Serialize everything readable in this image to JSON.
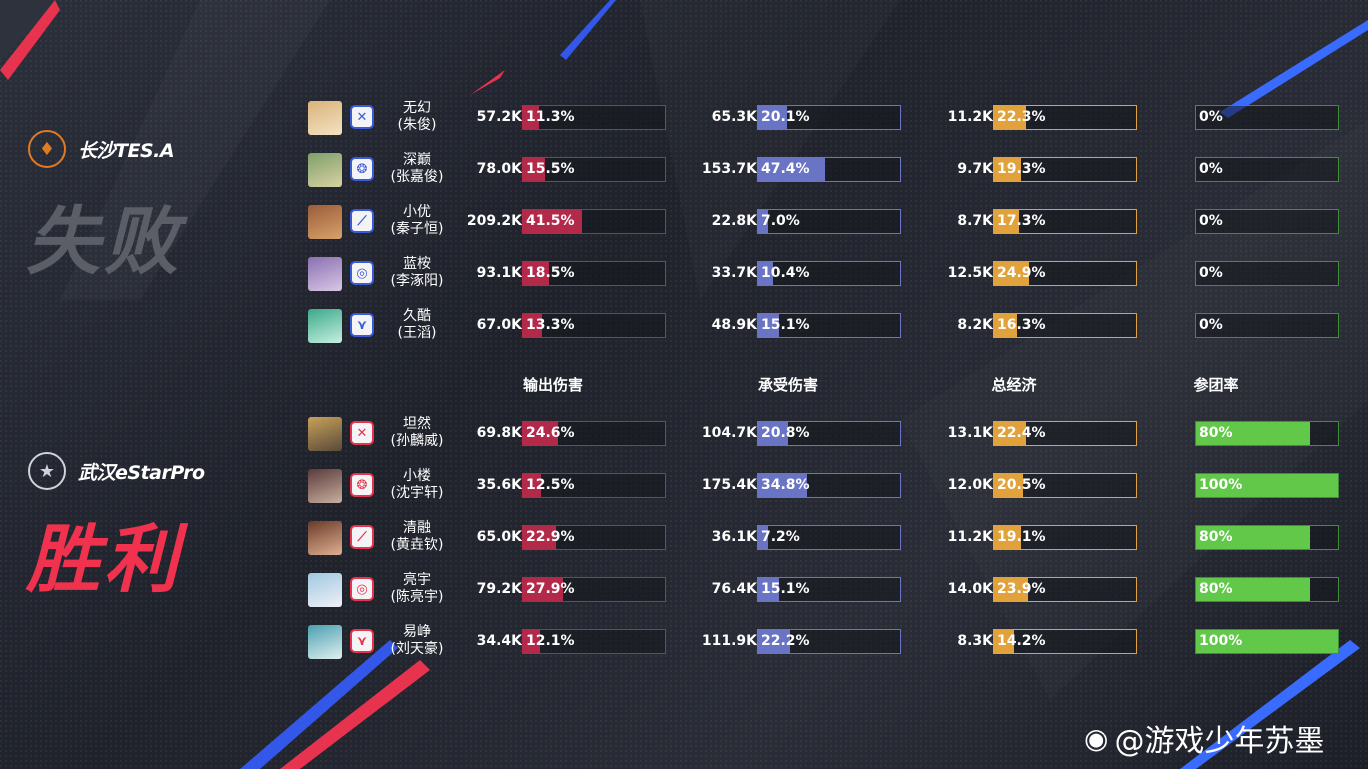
{
  "colors": {
    "damage": "#b3294a",
    "taken": "#6a74c4",
    "gold": "#e2a23b",
    "part": "#62c84a",
    "lose": "#6e717a",
    "win": "#f0324f"
  },
  "teams": {
    "top": {
      "name": "长沙TES.A",
      "result": "失败",
      "logo_icon": "tes-logo-icon"
    },
    "bottom": {
      "name": "武汉eStarPro",
      "result": "胜利",
      "logo_icon": "estar-logo-icon"
    }
  },
  "headers": {
    "damage": "输出伤害",
    "taken": "承受伤害",
    "gold": "总经济",
    "participation": "参团率"
  },
  "players_top": [
    {
      "name": "无幻",
      "real": "(朱俊)",
      "role": "jungle-role-icon",
      "dmg": "57.2K",
      "dmg_pct": "11.3%",
      "dmg_v": 0.113,
      "taken": "65.3K",
      "taken_pct": "20.1%",
      "taken_v": 0.201,
      "gold": "11.2K",
      "gold_pct": "22.3%",
      "gold_v": 0.223,
      "part": "0%",
      "part_v": 0
    },
    {
      "name": "深巅",
      "real": "(张嘉俊)",
      "role": "roam-role-icon",
      "dmg": "78.0K",
      "dmg_pct": "15.5%",
      "dmg_v": 0.155,
      "taken": "153.7K",
      "taken_pct": "47.4%",
      "taken_v": 0.474,
      "gold": "9.7K",
      "gold_pct": "19.3%",
      "gold_v": 0.193,
      "part": "0%",
      "part_v": 0
    },
    {
      "name": "小优",
      "real": "(秦子恒)",
      "role": "clash-lane-role-icon",
      "dmg": "209.2K",
      "dmg_pct": "41.5%",
      "dmg_v": 0.415,
      "taken": "22.8K",
      "taken_pct": "7.0%",
      "taken_v": 0.07,
      "gold": "8.7K",
      "gold_pct": "17.3%",
      "gold_v": 0.173,
      "part": "0%",
      "part_v": 0
    },
    {
      "name": "蓝桉",
      "real": "(李涿阳)",
      "role": "mid-role-icon",
      "dmg": "93.1K",
      "dmg_pct": "18.5%",
      "dmg_v": 0.185,
      "taken": "33.7K",
      "taken_pct": "10.4%",
      "taken_v": 0.104,
      "gold": "12.5K",
      "gold_pct": "24.9%",
      "gold_v": 0.249,
      "part": "0%",
      "part_v": 0
    },
    {
      "name": "久酷",
      "real": "(王滔)",
      "role": "farm-lane-role-icon",
      "dmg": "67.0K",
      "dmg_pct": "13.3%",
      "dmg_v": 0.133,
      "taken": "48.9K",
      "taken_pct": "15.1%",
      "taken_v": 0.151,
      "gold": "8.2K",
      "gold_pct": "16.3%",
      "gold_v": 0.163,
      "part": "0%",
      "part_v": 0
    }
  ],
  "players_bottom": [
    {
      "name": "坦然",
      "real": "(孙麟威)",
      "role": "jungle-role-icon",
      "dmg": "69.8K",
      "dmg_pct": "24.6%",
      "dmg_v": 0.246,
      "taken": "104.7K",
      "taken_pct": "20.8%",
      "taken_v": 0.208,
      "gold": "13.1K",
      "gold_pct": "22.4%",
      "gold_v": 0.224,
      "part": "80%",
      "part_v": 0.8
    },
    {
      "name": "小楼",
      "real": "(沈宇轩)",
      "role": "roam-role-icon",
      "dmg": "35.6K",
      "dmg_pct": "12.5%",
      "dmg_v": 0.125,
      "taken": "175.4K",
      "taken_pct": "34.8%",
      "taken_v": 0.348,
      "gold": "12.0K",
      "gold_pct": "20.5%",
      "gold_v": 0.205,
      "part": "100%",
      "part_v": 1
    },
    {
      "name": "清融",
      "real": "(黄垚钦)",
      "role": "clash-lane-role-icon",
      "dmg": "65.0K",
      "dmg_pct": "22.9%",
      "dmg_v": 0.229,
      "taken": "36.1K",
      "taken_pct": "7.2%",
      "taken_v": 0.072,
      "gold": "11.2K",
      "gold_pct": "19.1%",
      "gold_v": 0.191,
      "part": "80%",
      "part_v": 0.8
    },
    {
      "name": "亮宇",
      "real": "(陈亮宇)",
      "role": "mid-role-icon",
      "dmg": "79.2K",
      "dmg_pct": "27.9%",
      "dmg_v": 0.279,
      "taken": "76.4K",
      "taken_pct": "15.1%",
      "taken_v": 0.151,
      "gold": "14.0K",
      "gold_pct": "23.9%",
      "gold_v": 0.239,
      "part": "80%",
      "part_v": 0.8
    },
    {
      "name": "易峥",
      "real": "(刘天豪)",
      "role": "farm-lane-role-icon",
      "dmg": "34.4K",
      "dmg_pct": "12.1%",
      "dmg_v": 0.121,
      "taken": "111.9K",
      "taken_pct": "22.2%",
      "taken_v": 0.222,
      "gold": "8.3K",
      "gold_pct": "14.2%",
      "gold_v": 0.142,
      "part": "100%",
      "part_v": 1
    }
  ],
  "watermark": {
    "text": "@游戏少年苏墨",
    "icon": "weibo-icon"
  }
}
